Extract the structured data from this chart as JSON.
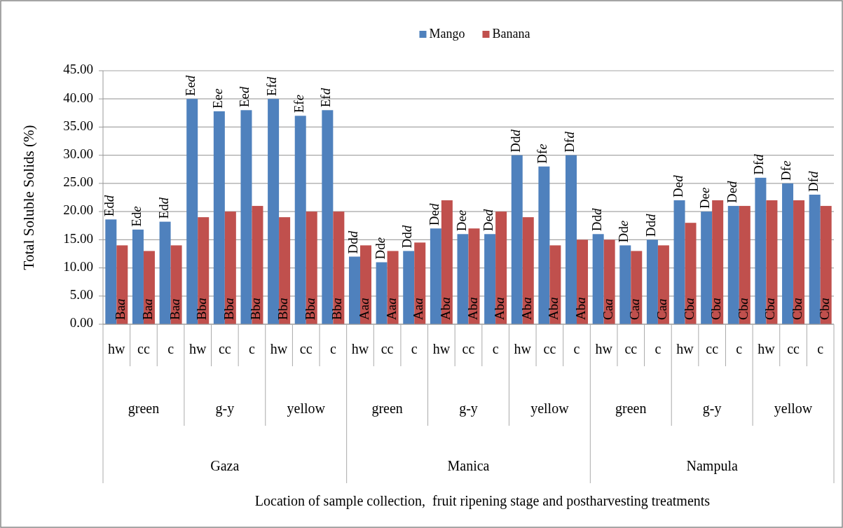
{
  "chart_data": {
    "type": "bar",
    "ylabel": "Total Soluble Solids (%)",
    "categories": [
      "hw",
      "cc",
      "c",
      "hw",
      "cc",
      "c",
      "hw",
      "cc",
      "c",
      "hw",
      "cc",
      "c",
      "hw",
      "cc",
      "c",
      "hw",
      "cc",
      "c",
      "hw",
      "cc",
      "c",
      "hw",
      "cc",
      "c",
      "hw",
      "cc",
      "c"
    ],
    "annotations": [
      "green",
      "g-y",
      "yellow",
      "green",
      "g-y",
      "yellow",
      "green",
      "g-y",
      "yellow",
      "Gaza",
      "Manica",
      "Nampula",
      "Location of sample collection,  fruit ripening stage and postharvesting treatments"
    ],
    "series": [
      {
        "name": "Mango",
        "color": "#4f81bd",
        "values": [
          18.6,
          16.8,
          18.2,
          40,
          37.8,
          38,
          40,
          37,
          38,
          12,
          11,
          13,
          17,
          16,
          16,
          30,
          28,
          30,
          16,
          14,
          15,
          22,
          20,
          21,
          26,
          25,
          23
        ],
        "value_labels": [
          "Edd",
          "Ede",
          "Edd",
          "Eed",
          "Eee",
          "Eed",
          "Efd",
          "Efe",
          "Efd",
          "Ddd",
          "Dde",
          "Ddd",
          "Ded",
          "Dee",
          "Ded",
          "Ddd",
          "Dfe",
          "Dfd",
          "Ddd",
          "Dde",
          "Ddd",
          "Ded",
          "Dee",
          "Ded",
          "Dfd",
          "Dfe",
          "Dfd"
        ]
      },
      {
        "name": "Banana",
        "color": "#c0504d",
        "values": [
          14,
          13,
          14,
          19,
          20,
          21,
          19,
          20,
          20,
          14,
          13,
          14.5,
          22,
          17,
          20,
          19,
          14,
          15,
          15,
          13,
          14,
          18,
          22,
          21,
          22,
          22,
          21
        ],
        "value_labels": [
          "Baa",
          "Baa",
          "Baa",
          "Bba",
          "Bba",
          "Bba",
          "Bba",
          "Bba",
          "Bba",
          "Aaa",
          "Aaa",
          "Aaa",
          "Aba",
          "Aba",
          "Aba",
          "Aba",
          "Aba",
          "Aba",
          "Caa",
          "Caa",
          "Caa",
          "Cba",
          "Cba",
          "Cba",
          "Cba",
          "Cba",
          "Cba"
        ]
      }
    ],
    "ylim": [
      0,
      45
    ],
    "yticks": [
      {
        "value": 0,
        "label": "0.00"
      },
      {
        "value": 5,
        "label": "5.00"
      },
      {
        "value": 10,
        "label": "10.00"
      },
      {
        "value": 15,
        "label": "15.00"
      },
      {
        "value": 20,
        "label": "20.00"
      },
      {
        "value": 25,
        "label": "25.00"
      },
      {
        "value": 30,
        "label": "30.00"
      },
      {
        "value": 35,
        "label": "35.00"
      },
      {
        "value": 40,
        "label": "40.00"
      },
      {
        "value": 45,
        "label": "45.00"
      }
    ],
    "grid": "y",
    "legend": "top"
  }
}
